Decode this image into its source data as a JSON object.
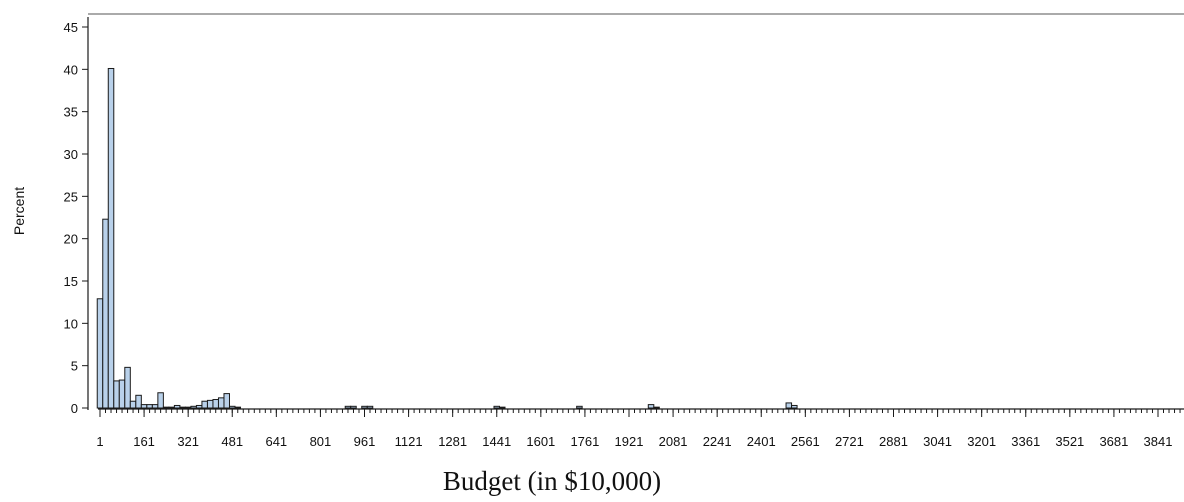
{
  "chart_data": {
    "type": "bar",
    "title": "",
    "xlabel": "Budget (in $10,000)",
    "ylabel": "Percent",
    "ylim": [
      0,
      45
    ],
    "yticks": [
      0,
      5,
      10,
      15,
      20,
      25,
      30,
      35,
      40,
      45
    ],
    "xticks": [
      "1",
      "161",
      "321",
      "481",
      "641",
      "801",
      "961",
      "1121",
      "1281",
      "1441",
      "1601",
      "1761",
      "1921",
      "2081",
      "2241",
      "2401",
      "2561",
      "2721",
      "2881",
      "3041",
      "3201",
      "3361",
      "3521",
      "3681",
      "3841"
    ],
    "bin_width": 20,
    "bin_start": 1,
    "bar_color": "#b9d1ea",
    "bin_starts": [
      1,
      21,
      41,
      61,
      81,
      101,
      121,
      141,
      161,
      181,
      201,
      221,
      241,
      261,
      281,
      301,
      321,
      341,
      361,
      381,
      401,
      421,
      441,
      461,
      481,
      501,
      901,
      921,
      961,
      981,
      1441,
      1461,
      1741,
      2001,
      2021,
      2501,
      2521,
      3981,
      4001
    ],
    "values": [
      12.9,
      22.3,
      40.1,
      3.2,
      3.3,
      4.8,
      0.8,
      1.5,
      0.4,
      0.4,
      0.4,
      1.8,
      0.1,
      0.1,
      0.3,
      0.1,
      0.1,
      0.2,
      0.3,
      0.8,
      0.9,
      1.0,
      1.2,
      1.7,
      0.2,
      0.1,
      0.2,
      0.2,
      0.2,
      0.2,
      0.2,
      0.1,
      0.2,
      0.4,
      0.1,
      0.6,
      0.3,
      0.1,
      0.3
    ]
  }
}
